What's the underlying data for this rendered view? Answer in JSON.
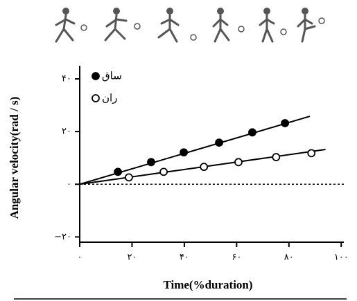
{
  "chart_data": {
    "type": "scatter",
    "x_label": "Time(%duration)",
    "y_label": "Angular velocity(rad / s)",
    "xlim": [
      0,
      101
    ],
    "ylim": [
      -22,
      45
    ],
    "xticks": [
      {
        "value": 0,
        "label": "۰"
      },
      {
        "value": 20,
        "label": "۲۰"
      },
      {
        "value": 40,
        "label": "۴۰"
      },
      {
        "value": 60,
        "label": "۶۰"
      },
      {
        "value": 80,
        "label": "۸۰"
      },
      {
        "value": 100,
        "label": "۱۰۰"
      }
    ],
    "yticks": [
      {
        "value": -20,
        "label": "−۲۰"
      },
      {
        "value": 0,
        "label": "۰"
      },
      {
        "value": 20,
        "label": "۲۰"
      },
      {
        "value": 40,
        "label": "۴۰"
      }
    ],
    "hline": 0,
    "legend": "upper left",
    "series": [
      {
        "name": "ساق",
        "color": "#000000",
        "marker": "filled",
        "x": [
          14.6,
          27.3,
          39.8,
          53.3,
          66,
          78.5
        ],
        "values": [
          4.7,
          8.4,
          12.1,
          15.8,
          19.7,
          23.2
        ],
        "fit_x": [
          0,
          88
        ],
        "fit_y": [
          0,
          25.8
        ]
      },
      {
        "name": "ران",
        "color": "#000000",
        "marker": "open",
        "x": [
          18.8,
          32.1,
          47.5,
          60.7,
          75.1,
          88.6
        ],
        "values": [
          2.6,
          4.7,
          6.6,
          8.4,
          10.3,
          11.8
        ],
        "fit_x": [
          0,
          94
        ],
        "fit_y": [
          0,
          13.2
        ]
      }
    ]
  }
}
